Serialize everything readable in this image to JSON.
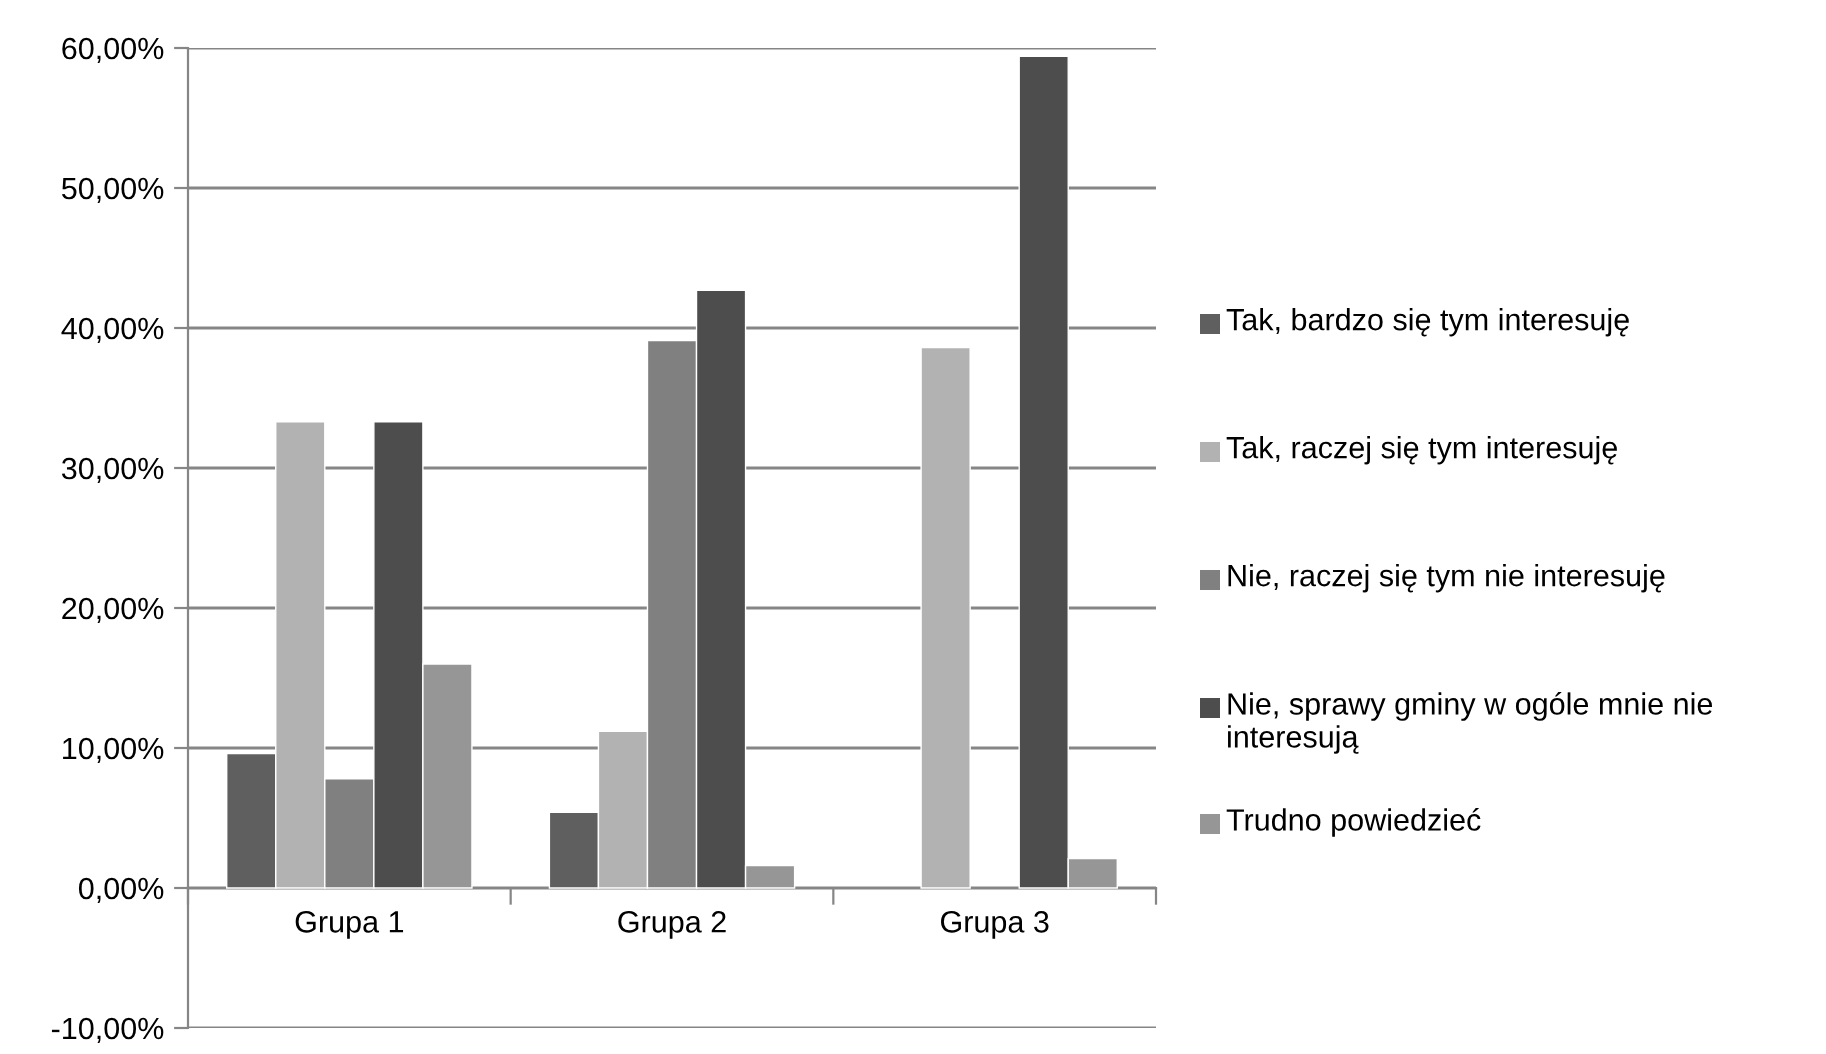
{
  "chart_data": {
    "type": "bar",
    "categories": [
      "Grupa 1",
      "Grupa 2",
      "Grupa 3"
    ],
    "series": [
      {
        "name": "Tak, bardzo się tym interesuję",
        "color": "#5f5f5f",
        "values": [
          9.6,
          5.4,
          null
        ]
      },
      {
        "name": "Tak, raczej się tym interesuję",
        "color": "#b2b2b2",
        "values": [
          33.3,
          11.2,
          38.6
        ]
      },
      {
        "name": "Nie, raczej się tym nie interesuję",
        "color": "#808080",
        "values": [
          7.8,
          39.1,
          null
        ]
      },
      {
        "name": "Nie, sprawy gminy w ogóle mnie nie interesują",
        "color": "#4d4d4d",
        "values": [
          33.3,
          42.7,
          59.4
        ]
      },
      {
        "name": "Trudno powiedzieć",
        "color": "#969696",
        "values": [
          16.0,
          1.6,
          2.1
        ]
      }
    ],
    "ylim": [
      -10,
      60
    ],
    "yticks": [
      {
        "value": -10,
        "label": "-10,00%"
      },
      {
        "value": 0,
        "label": "0,00%"
      },
      {
        "value": 10,
        "label": "10,00%"
      },
      {
        "value": 20,
        "label": "20,00%"
      },
      {
        "value": 30,
        "label": "30,00%"
      },
      {
        "value": 40,
        "label": "40,00%"
      },
      {
        "value": 50,
        "label": "50,00%"
      },
      {
        "value": 60,
        "label": "60,00%"
      }
    ],
    "grid": "y",
    "legend": "right"
  }
}
